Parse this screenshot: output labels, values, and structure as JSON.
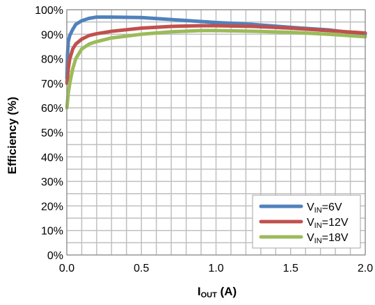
{
  "chart_data": {
    "type": "line",
    "ylabel": "Efficiency (%)",
    "xlabel": {
      "main": "I",
      "sub": "OUT",
      "unit": " (A)"
    },
    "xlim": [
      0,
      2.0
    ],
    "ylim": [
      0,
      100
    ],
    "x_ticks": [
      "0.0",
      "0.5",
      "1.0",
      "1.5",
      "2.0"
    ],
    "y_ticks": [
      "0%",
      "10%",
      "20%",
      "30%",
      "40%",
      "50%",
      "60%",
      "70%",
      "80%",
      "90%",
      "100%"
    ],
    "grid": true,
    "legend_position": "bottom-right",
    "series": [
      {
        "name": "VIN=6V",
        "label": {
          "main": "V",
          "sub": "IN",
          "rest": "=6V"
        },
        "color": "#4F81BD",
        "points": [
          [
            0.001,
            72
          ],
          [
            0.005,
            82
          ],
          [
            0.01,
            87
          ],
          [
            0.02,
            89.5
          ],
          [
            0.04,
            92
          ],
          [
            0.06,
            94
          ],
          [
            0.1,
            95.5
          ],
          [
            0.15,
            96.5
          ],
          [
            0.2,
            97
          ],
          [
            0.3,
            97
          ],
          [
            0.5,
            96.8
          ],
          [
            0.7,
            96
          ],
          [
            1.0,
            94.8
          ],
          [
            1.25,
            94
          ],
          [
            1.5,
            92.8
          ],
          [
            1.75,
            91.8
          ],
          [
            2.0,
            90
          ]
        ]
      },
      {
        "name": "VIN=12V",
        "label": {
          "main": "V",
          "sub": "IN",
          "rest": "=12V"
        },
        "color": "#C0504D",
        "points": [
          [
            0.001,
            70
          ],
          [
            0.01,
            76
          ],
          [
            0.02,
            80
          ],
          [
            0.04,
            84
          ],
          [
            0.06,
            86
          ],
          [
            0.1,
            88
          ],
          [
            0.15,
            89.5
          ],
          [
            0.2,
            90.2
          ],
          [
            0.3,
            91.2
          ],
          [
            0.5,
            92.5
          ],
          [
            0.7,
            93.2
          ],
          [
            0.9,
            93.5
          ],
          [
            1.0,
            93.5
          ],
          [
            1.25,
            93.2
          ],
          [
            1.5,
            92.5
          ],
          [
            1.75,
            91.5
          ],
          [
            2.0,
            90.5
          ]
        ]
      },
      {
        "name": "VIN=18V",
        "label": {
          "main": "V",
          "sub": "IN",
          "rest": "=18V"
        },
        "color": "#9BBB59",
        "points": [
          [
            0.001,
            60
          ],
          [
            0.01,
            66
          ],
          [
            0.02,
            70
          ],
          [
            0.04,
            76
          ],
          [
            0.06,
            80
          ],
          [
            0.1,
            84
          ],
          [
            0.15,
            86
          ],
          [
            0.2,
            87
          ],
          [
            0.3,
            88.5
          ],
          [
            0.5,
            90
          ],
          [
            0.7,
            91
          ],
          [
            0.9,
            91.5
          ],
          [
            1.0,
            91.5
          ],
          [
            1.25,
            91.2
          ],
          [
            1.5,
            90.8
          ],
          [
            1.75,
            90
          ],
          [
            2.0,
            89
          ]
        ]
      }
    ]
  }
}
